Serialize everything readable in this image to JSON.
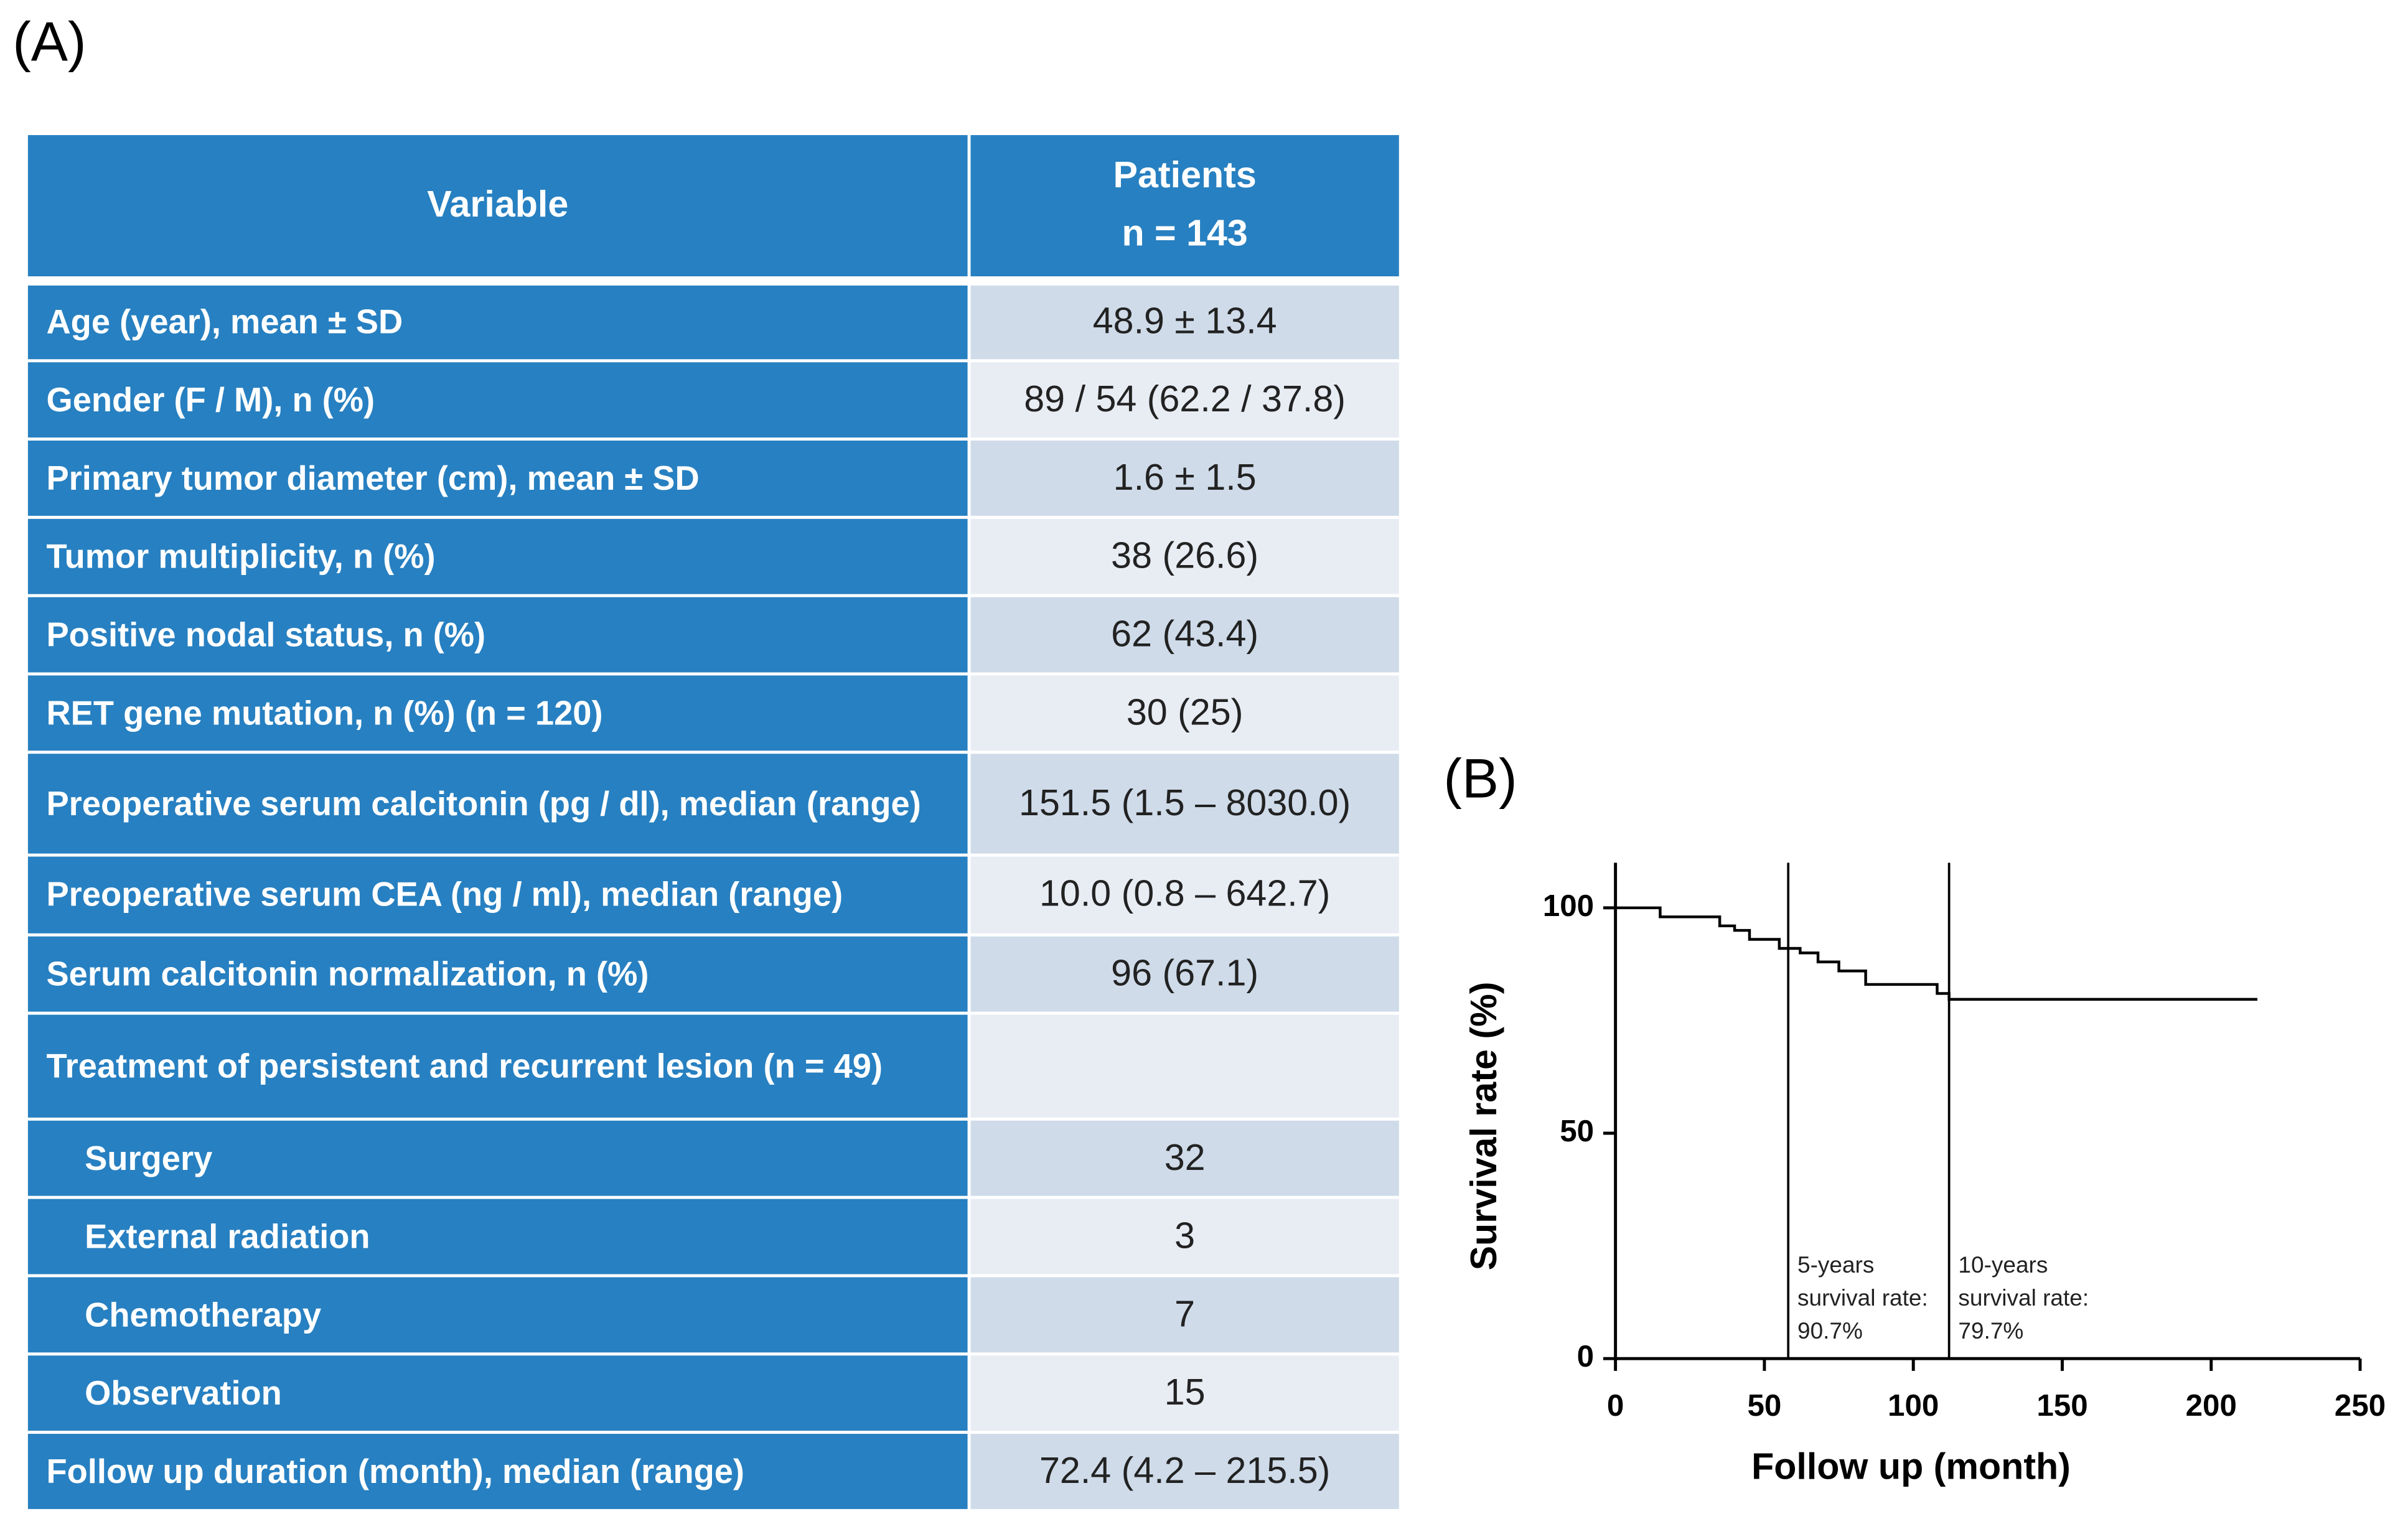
{
  "panel_a_label": "(A)",
  "panel_b_label": "(B)",
  "table": {
    "header": [
      "Variable",
      "Patients",
      "n = 143"
    ],
    "rows": [
      {
        "label": "Age (year), mean ± SD",
        "value": "48.9 ± 13.4"
      },
      {
        "label": "Gender (F / M), n (%)",
        "value": "89 / 54 (62.2 / 37.8)"
      },
      {
        "label": "Primary tumor diameter (cm), mean ± SD",
        "value": "1.6 ± 1.5"
      },
      {
        "label": "Tumor multiplicity, n (%)",
        "value": "38 (26.6)"
      },
      {
        "label": "Positive nodal status, n (%)",
        "value": "62 (43.4)"
      },
      {
        "label": "RET gene mutation, n (%) (n = 120)",
        "value": "30 (25)"
      },
      {
        "label": "Preoperative serum calcitonin (pg / dl), median (range)",
        "value": "151.5 (1.5 – 8030.0)"
      },
      {
        "label": "Preoperative serum CEA (ng / ml), median (range)",
        "value": "10.0 (0.8 – 642.7)"
      },
      {
        "label": "Serum calcitonin normalization, n (%)",
        "value": "96 (67.1)"
      },
      {
        "label": "Treatment of persistent and recurrent lesion (n = 49)"
      },
      {
        "label": "Surgery",
        "value": "32",
        "indent": true
      },
      {
        "label": "External radiation",
        "value": "3",
        "indent": true
      },
      {
        "label": "Chemotherapy",
        "value": "7",
        "indent": true
      },
      {
        "label": "Observation",
        "value": "15",
        "indent": true
      },
      {
        "label": "Follow up duration (month), median (range)",
        "value": "72.4 (4.2 – 215.5)"
      }
    ]
  },
  "chart_data": {
    "type": "line",
    "step": true,
    "color": "#000000",
    "xlabel": "Follow up (month)",
    "ylabel": "Survival rate (%)",
    "x": [
      0,
      15,
      15,
      35,
      35,
      40,
      40,
      45,
      45,
      55,
      55,
      62,
      62,
      68,
      68,
      75,
      75,
      84,
      84,
      108,
      108,
      112,
      112,
      215.5
    ],
    "values": [
      100,
      100,
      98,
      98,
      96,
      96,
      95,
      95,
      93,
      93,
      91,
      91,
      90,
      90,
      88,
      88,
      86,
      86,
      83,
      83,
      81,
      81,
      79.7,
      79.7
    ],
    "xlim": [
      0,
      250
    ],
    "ylim": [
      0,
      110
    ],
    "xticks": [
      0,
      50,
      100,
      150,
      200,
      250
    ],
    "yticks": [
      0,
      50,
      100
    ],
    "reference_lines": [
      {
        "x": 58,
        "text": [
          "5-years",
          "survival rate:",
          "90.7%"
        ]
      },
      {
        "x": 112,
        "text": [
          "10-years",
          "survival rate:",
          "79.7%"
        ]
      }
    ]
  }
}
